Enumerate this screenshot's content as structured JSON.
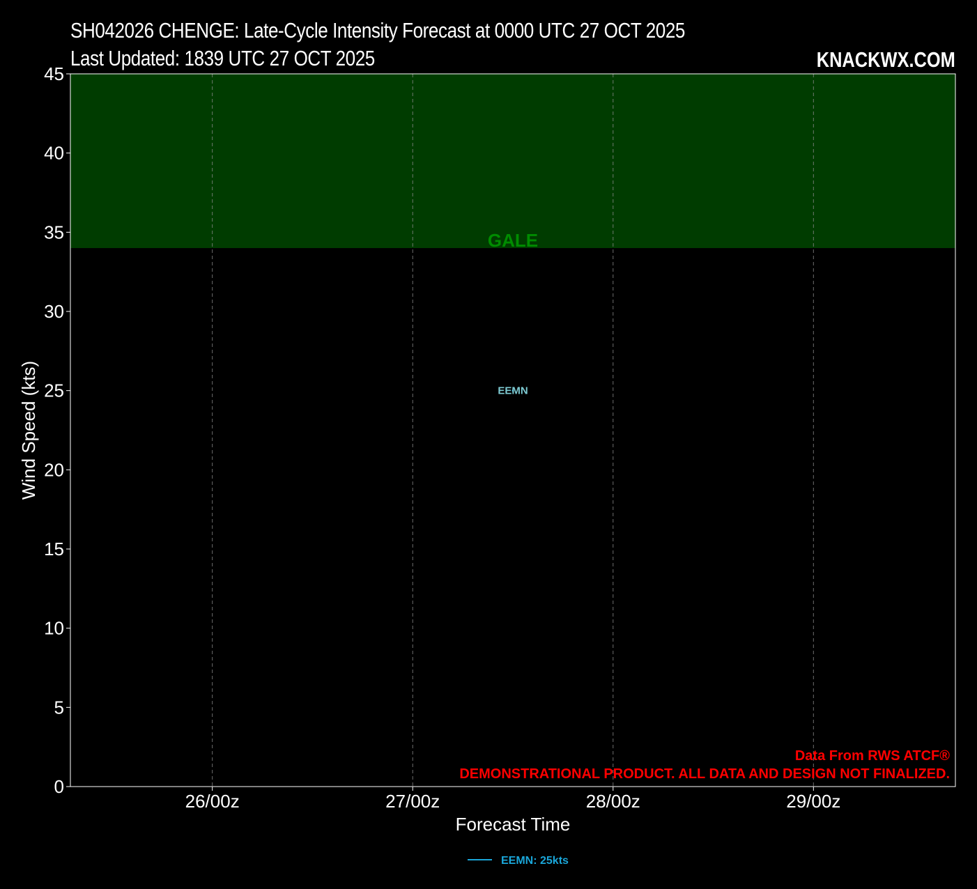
{
  "header": {
    "title": "SH042026 CHENGE: Late-Cycle Intensity Forecast at 0000 UTC 27 OCT 2025",
    "subtitle": "Last Updated: 1839 UTC 27 OCT 2025",
    "brand": "KNACKWX.COM"
  },
  "notes": {
    "source": "Data From RWS ATCF®",
    "disclaimer": "DEMONSTRATIONAL PRODUCT. ALL DATA AND DESIGN NOT FINALIZED."
  },
  "colors": {
    "background": "#000000",
    "gale_band": "#003c00",
    "gale_label": "#008c00",
    "eemn_series": "#1aa6d9",
    "eemn_point_label": "#7ecbd3",
    "notes": "#ff0000",
    "grid": "#8a8a8a"
  },
  "chart_data": {
    "type": "line",
    "xlabel": "Forecast Time",
    "ylabel": "Wind Speed (kts)",
    "ylim": [
      0,
      45
    ],
    "xlim": [
      "25/07z",
      "29/17z"
    ],
    "xticks": [
      "26/00z",
      "27/00z",
      "28/00z",
      "29/00z"
    ],
    "yticks": [
      0,
      5,
      10,
      15,
      20,
      25,
      30,
      35,
      40,
      45
    ],
    "grid": "vertical dashed",
    "legend": "bottom-center, below plot",
    "bands": [
      {
        "label": "GALE",
        "from": 34,
        "to": 45
      }
    ],
    "series": [
      {
        "name": "EEMN",
        "legend_label": "EEMN: 25kts",
        "points": [
          {
            "x": "27/12z",
            "y": 25,
            "label": "EEMN"
          }
        ]
      }
    ]
  }
}
